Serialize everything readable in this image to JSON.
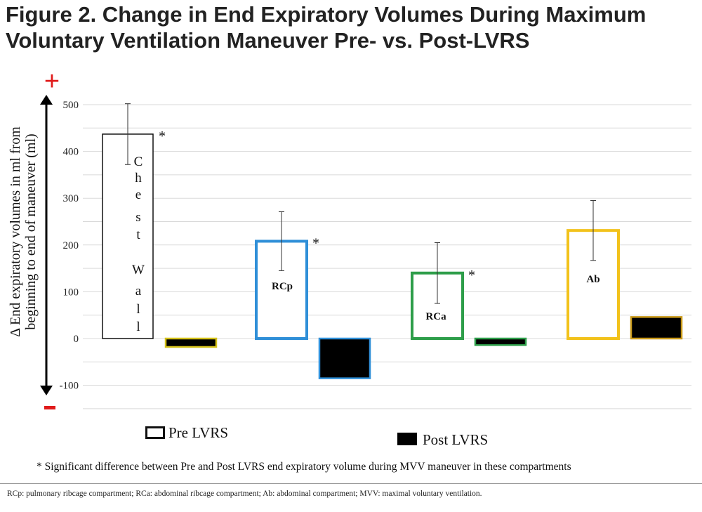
{
  "title": "Figure 2. Change in End Expiratory Volumes During Maximum Voluntary Ventilation Maneuver Pre- vs. Post-LVRS",
  "legend": {
    "pre": "Pre LVRS",
    "post": "Post LVRS"
  },
  "significance_note": "* Significant difference between Pre and Post LVRS end expiratory volume during MVV maneuver in these compartments",
  "abbreviations": "RCp: pulmonary ribcage compartment; RCa: abdominal ribcage compartment; Ab: abdominal compartment; MVV: maximal voluntary ventilation.",
  "chart_data": {
    "type": "bar",
    "ylabel": "Δ End expiratory volumes in ml from beginning to end of maneuver (ml)",
    "ylim": [
      -150,
      550
    ],
    "yticks": [
      -100,
      0,
      100,
      200,
      300,
      400,
      500
    ],
    "grid": true,
    "axis_markers": {
      "top": "+",
      "bottom": "-"
    },
    "categories": [
      "Chest Wall",
      "RCp",
      "RCa",
      "Ab"
    ],
    "category_labels": [
      "C h e s t W a l l",
      "RCp",
      "RCa",
      "Ab"
    ],
    "category_colors": [
      "#ffffff",
      "#2f8fd8",
      "#2e9e4a",
      "#f2c21b"
    ],
    "post_border_colors": [
      "#d4c11a",
      "#2f8fd8",
      "#2e9e4a",
      "#c99a1a"
    ],
    "series": [
      {
        "name": "Pre LVRS",
        "values": [
          437,
          208,
          140,
          231
        ],
        "errors": [
          65,
          63,
          65,
          64
        ],
        "significant": [
          true,
          true,
          true,
          false
        ]
      },
      {
        "name": "Post LVRS",
        "values": [
          -18,
          -85,
          -14,
          46
        ]
      }
    ],
    "significance_marker": "*"
  }
}
